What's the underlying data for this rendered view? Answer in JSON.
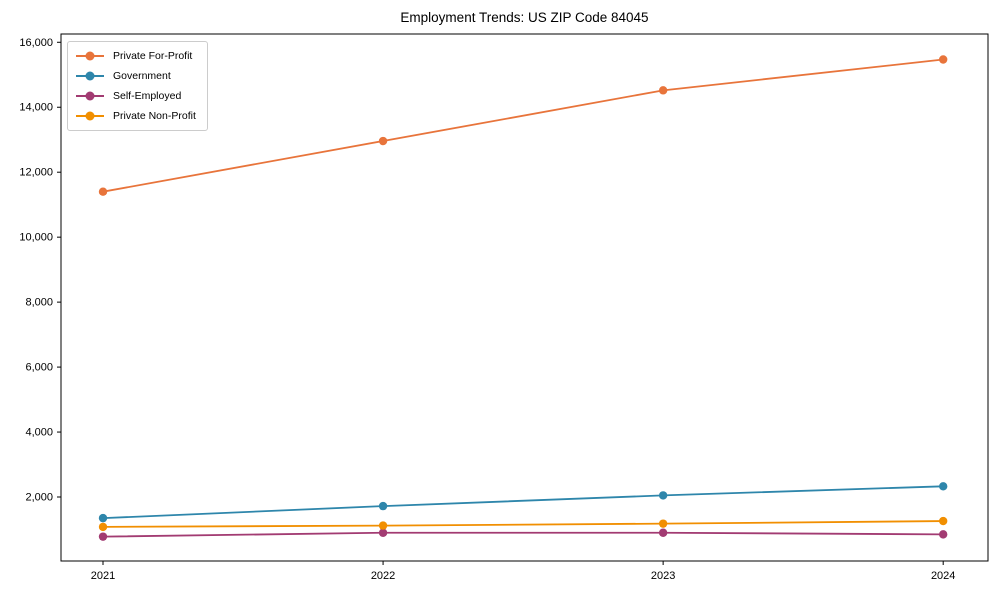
{
  "chart_data": {
    "type": "line",
    "title": "Employment Trends: US ZIP Code 84045",
    "xlabel": "",
    "ylabel": "",
    "x": [
      2021,
      2022,
      2023,
      2024
    ],
    "xtick_labels": [
      "2021",
      "2022",
      "2023",
      "2024"
    ],
    "series": [
      {
        "name": "Private For-Profit",
        "color": "#E8743B",
        "values": [
          11400,
          12960,
          14520,
          15470
        ]
      },
      {
        "name": "Government",
        "color": "#2E86AB",
        "values": [
          1350,
          1720,
          2050,
          2330
        ]
      },
      {
        "name": "Self-Employed",
        "color": "#A23B72",
        "values": [
          780,
          900,
          900,
          850
        ]
      },
      {
        "name": "Private Non-Profit",
        "color": "#F18F01",
        "values": [
          1080,
          1120,
          1180,
          1260
        ]
      }
    ],
    "yticks": [
      2000,
      4000,
      6000,
      8000,
      10000,
      12000,
      14000,
      16000
    ],
    "ytick_labels": [
      "2,000",
      "4,000",
      "6,000",
      "8,000",
      "10,000",
      "12,000",
      "14,000",
      "16,000"
    ],
    "xlim": [
      2020.85,
      2024.16
    ],
    "ylim": [
      30,
      16255
    ],
    "grid": false,
    "legend_position": "upper left",
    "axis_color": "#000000",
    "background_color": "#ffffff"
  }
}
